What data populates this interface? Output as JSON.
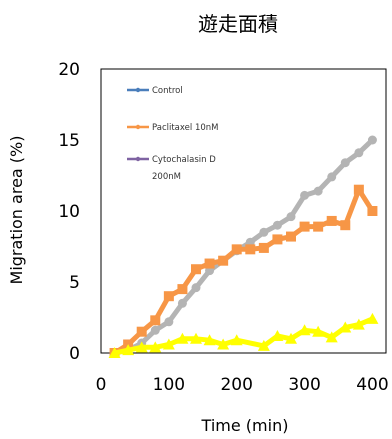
{
  "chart_data": {
    "type": "line",
    "title": "遊走面積",
    "xlabel": "Time (min)",
    "ylabel": "Migration area (%)",
    "xlim": [
      0,
      420
    ],
    "ylim": [
      0,
      20
    ],
    "xticks": [
      0,
      100,
      200,
      300,
      400
    ],
    "yticks": [
      0,
      5,
      10,
      15,
      20
    ],
    "grid": false,
    "legend": {
      "placement": "top-left",
      "entries": [
        {
          "label": "Control",
          "lines": [
            "Control"
          ]
        },
        {
          "label": "Paclitaxel 10nM",
          "lines": [
            "Paclitaxel 10nM"
          ]
        },
        {
          "label": "Cytochalasin D 200nM",
          "lines": [
            "Cytochalasin D",
            "200nM"
          ]
        }
      ]
    },
    "series": [
      {
        "name": "Control",
        "color": "#b4b4b4",
        "legend_color": "#4a7ebb",
        "x": [
          20,
          40,
          60,
          80,
          100,
          120,
          140,
          160,
          180,
          200,
          220,
          240,
          260,
          280,
          300,
          320,
          340,
          360,
          380,
          400
        ],
        "y": [
          0.0,
          0.2,
          0.7,
          1.6,
          2.2,
          3.5,
          4.6,
          5.8,
          6.5,
          7.2,
          7.8,
          8.5,
          9.0,
          9.6,
          11.1,
          11.4,
          12.4,
          13.4,
          14.1,
          15.0
        ]
      },
      {
        "name": "Paclitaxel 10nM",
        "color": "#f79646",
        "legend_color": "#f79646",
        "x": [
          20,
          40,
          60,
          80,
          100,
          120,
          140,
          160,
          180,
          200,
          220,
          240,
          260,
          280,
          300,
          320,
          340,
          360,
          380,
          400
        ],
        "y": [
          0.0,
          0.6,
          1.5,
          2.3,
          4.0,
          4.5,
          5.9,
          6.3,
          6.5,
          7.3,
          7.3,
          7.4,
          8.0,
          8.2,
          8.9,
          8.9,
          9.3,
          9.0,
          11.5,
          10.0
        ]
      },
      {
        "name": "Cytochalasin D 200nM",
        "color": "#ffff00",
        "legend_color": "#7f63a2",
        "x": [
          20,
          40,
          60,
          80,
          100,
          120,
          140,
          160,
          180,
          200,
          240,
          260,
          280,
          300,
          320,
          340,
          360,
          380,
          400
        ],
        "y": [
          0.0,
          0.2,
          0.4,
          0.4,
          0.6,
          1.0,
          1.0,
          0.9,
          0.6,
          0.9,
          0.5,
          1.2,
          1.0,
          1.6,
          1.5,
          1.1,
          1.8,
          2.0,
          2.4
        ]
      }
    ]
  }
}
